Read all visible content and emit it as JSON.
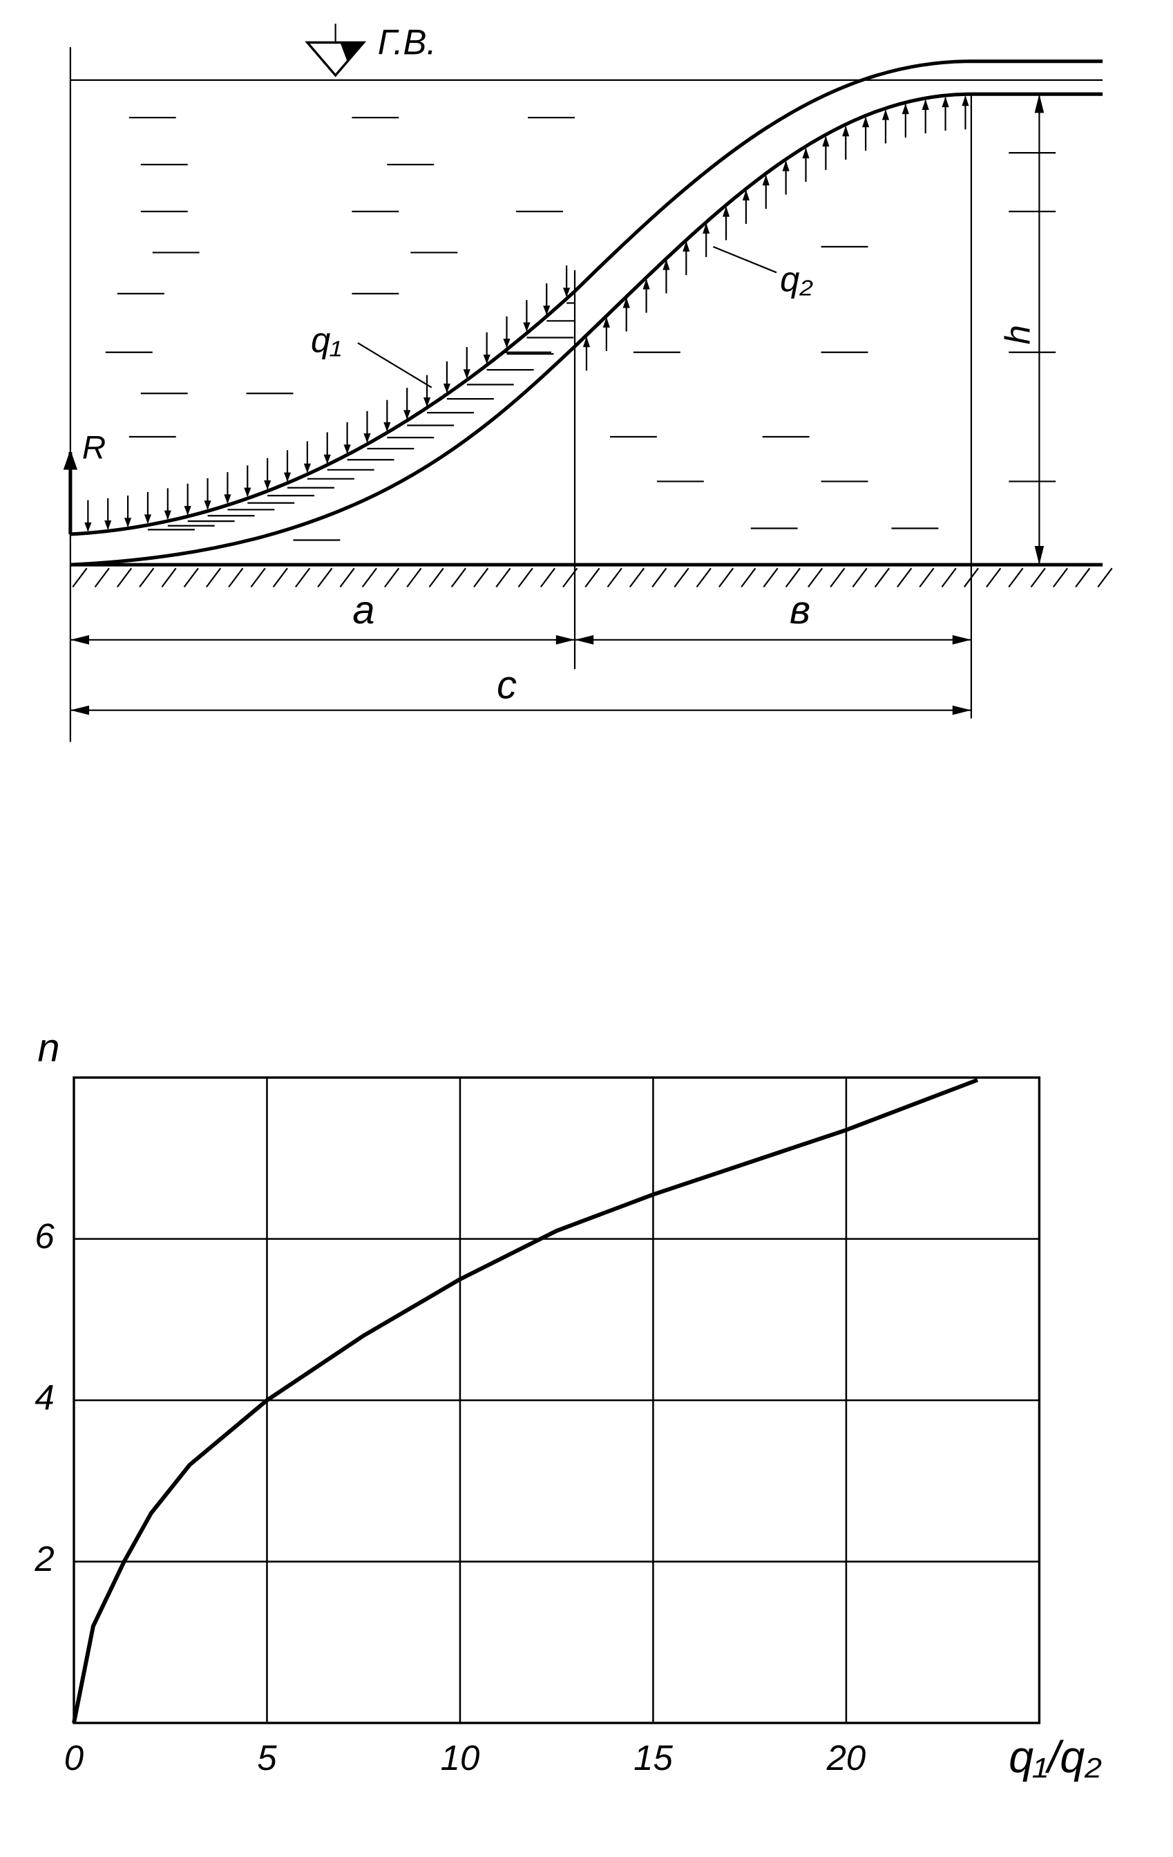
{
  "diagram": {
    "water_level": "Г.В.",
    "load_left": "q₁",
    "load_right": "q₂",
    "reaction": "R",
    "height": "h",
    "dim_a": "a",
    "dim_b": "в",
    "dim_c": "c"
  },
  "chart_data": {
    "type": "line",
    "y_label": "n",
    "x_label": "q₁/q₂",
    "x": [
      0,
      0.5,
      1.3,
      2,
      3,
      5,
      7.5,
      10,
      12.5,
      15,
      20,
      23.4
    ],
    "values": [
      0,
      1.2,
      2,
      2.6,
      3.2,
      4,
      4.8,
      5.5,
      6.1,
      6.55,
      7.35,
      7.97
    ],
    "color": "#000000",
    "xlim": [
      0,
      25
    ],
    "ylim": [
      0,
      8
    ],
    "xticks": [
      0,
      5,
      10,
      15,
      20
    ],
    "yticks": [
      2,
      4,
      6
    ],
    "grid": true
  }
}
